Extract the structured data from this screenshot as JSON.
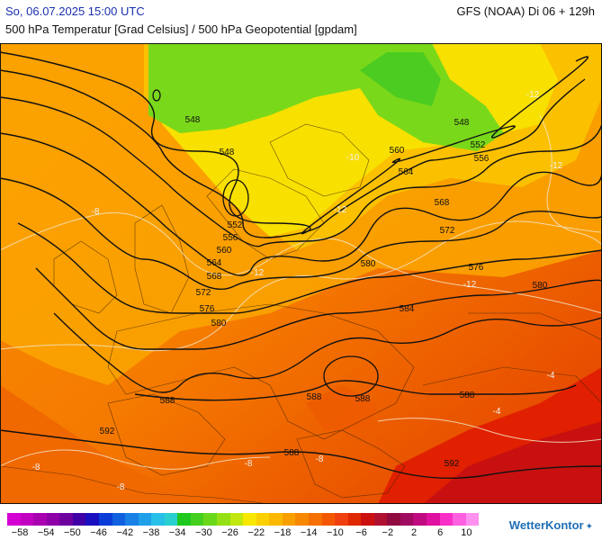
{
  "header": {
    "date": "So, 06.07.2025 15:00 UTC",
    "model": "GFS (NOAA) Di 06 + 129h",
    "subtitle": "500 hPa Temperatur [Grad Celsius] / 500 hPa Geopotential [gpdam]"
  },
  "geopotential_labels": [
    "548",
    "548",
    "548",
    "552",
    "552",
    "556",
    "556",
    "560",
    "560",
    "564",
    "564",
    "568",
    "568",
    "572",
    "572",
    "576",
    "576",
    "580",
    "580",
    "580",
    "584",
    "588",
    "588",
    "588",
    "588",
    "592",
    "592",
    "588"
  ],
  "temperature_labels": [
    "-10",
    "-12",
    "-12",
    "-12",
    "-8",
    "-12",
    "-8",
    "-8",
    "-8",
    "-8",
    "-4",
    "-4",
    "-12"
  ],
  "legend": {
    "colors": [
      "#d400d4",
      "#c200c2",
      "#a800b0",
      "#8d00a8",
      "#6e00a0",
      "#4000a6",
      "#1a10c0",
      "#0a3cd8",
      "#1060e0",
      "#1980e6",
      "#20a0e8",
      "#28c0e8",
      "#2ad0d0",
      "#1fc81f",
      "#45d020",
      "#6ad81a",
      "#95e014",
      "#c0e80f",
      "#f8e800",
      "#fbd000",
      "#fbb800",
      "#f9a000",
      "#f78800",
      "#f57000",
      "#f35800",
      "#f04010",
      "#e02800",
      "#cc1010",
      "#b01030",
      "#900a40",
      "#a00a60",
      "#c00a80",
      "#e010a0",
      "#f830c8",
      "#ff60e0",
      "#ff90f0"
    ],
    "labels": [
      "−58",
      "−54",
      "−50",
      "−46",
      "−42",
      "−38",
      "−34",
      "−30",
      "−26",
      "−22",
      "−18",
      "−14",
      "−10",
      "−6",
      "−2",
      "2",
      "6",
      "10"
    ]
  },
  "brand": "WetterKontor"
}
